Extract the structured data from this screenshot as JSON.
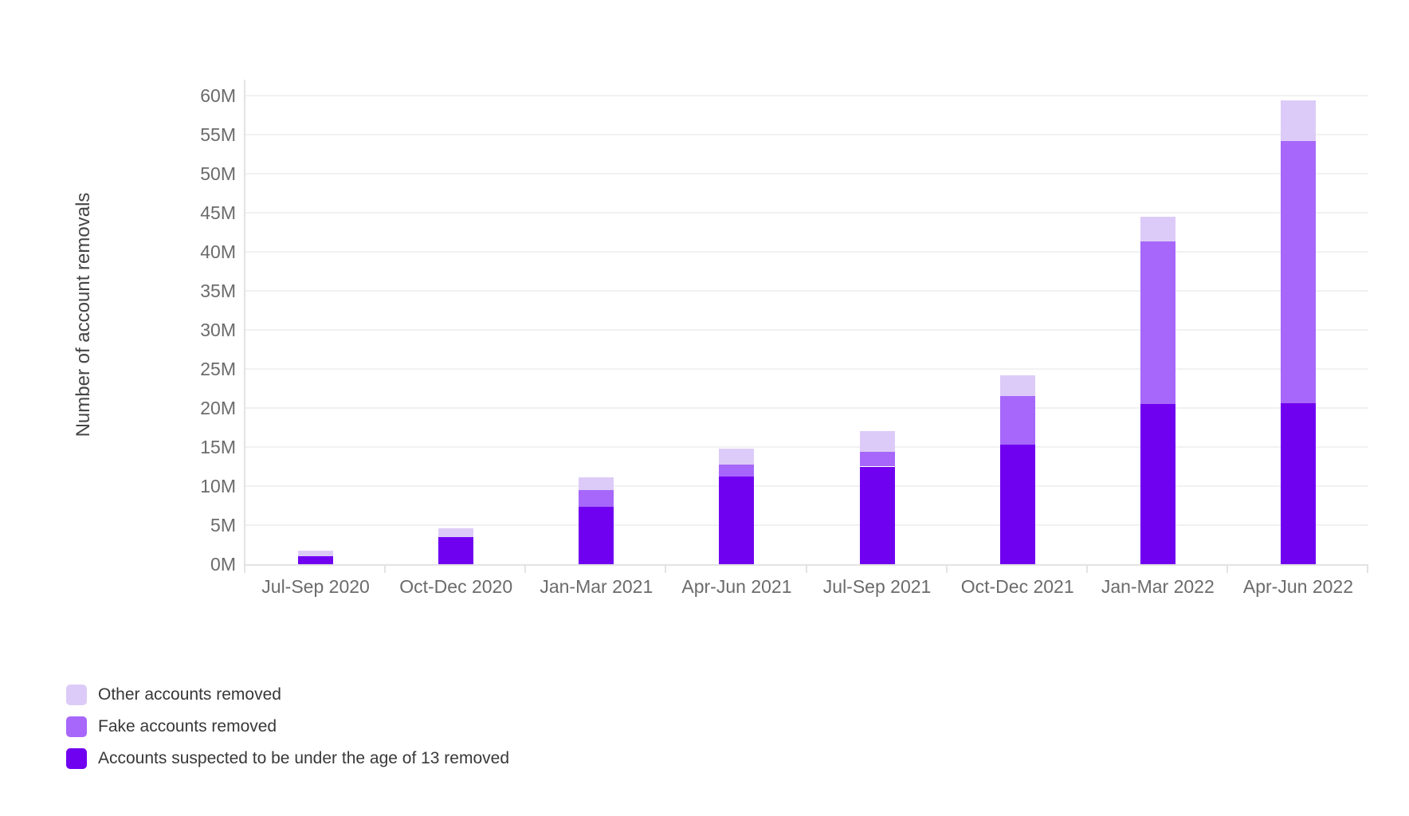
{
  "chart_data": {
    "type": "bar",
    "stacked": true,
    "title": "",
    "xlabel": "",
    "ylabel": "Number of account removals",
    "ylim": [
      0,
      62
    ],
    "grid": true,
    "legend_position": "bottom-left",
    "ytick_labels": [
      "0M",
      "5M",
      "10M",
      "15M",
      "20M",
      "25M",
      "30M",
      "35M",
      "40M",
      "45M",
      "50M",
      "55M",
      "60M"
    ],
    "ytick_values": [
      0,
      5,
      10,
      15,
      20,
      25,
      30,
      35,
      40,
      45,
      50,
      55,
      60
    ],
    "categories": [
      "Jul-Sep 2020",
      "Oct-Dec 2020",
      "Jan-Mar 2021",
      "Apr-Jun 2021",
      "Jul-Sep 2021",
      "Oct-Dec 2021",
      "Jan-Mar 2022",
      "Apr-Jun 2022"
    ],
    "unit": "millions of accounts",
    "series": [
      {
        "name": "Accounts suspected to be under the age of 13 removed",
        "color": "#7000f0",
        "values": [
          1.0,
          3.5,
          7.3,
          11.2,
          12.5,
          15.3,
          20.5,
          20.6
        ]
      },
      {
        "name": "Fake accounts removed",
        "color": "#a767fa",
        "values": [
          0,
          0,
          2.2,
          1.6,
          1.9,
          6.2,
          20.8,
          33.6
        ]
      },
      {
        "name": "Other accounts removed",
        "color": "#dccbf8",
        "values": [
          0.7,
          1.1,
          1.6,
          2.0,
          2.6,
          2.7,
          3.2,
          5.2
        ]
      }
    ],
    "totals": [
      1.7,
      4.6,
      11.1,
      14.8,
      17.0,
      24.2,
      44.5,
      59.4
    ],
    "legend": [
      {
        "label": "Other accounts removed",
        "color": "#dccbf8"
      },
      {
        "label": "Fake accounts removed",
        "color": "#a767fa"
      },
      {
        "label": "Accounts suspected to be under the age of 13 removed",
        "color": "#7000f0"
      }
    ]
  },
  "colors": {
    "background": "#ffffff",
    "gridline": "#f1f1f1",
    "axis_line": "#e3e3e3",
    "tick_text": "#6b6b6b",
    "axis_title_text": "#454545",
    "legend_text": "#383838"
  }
}
